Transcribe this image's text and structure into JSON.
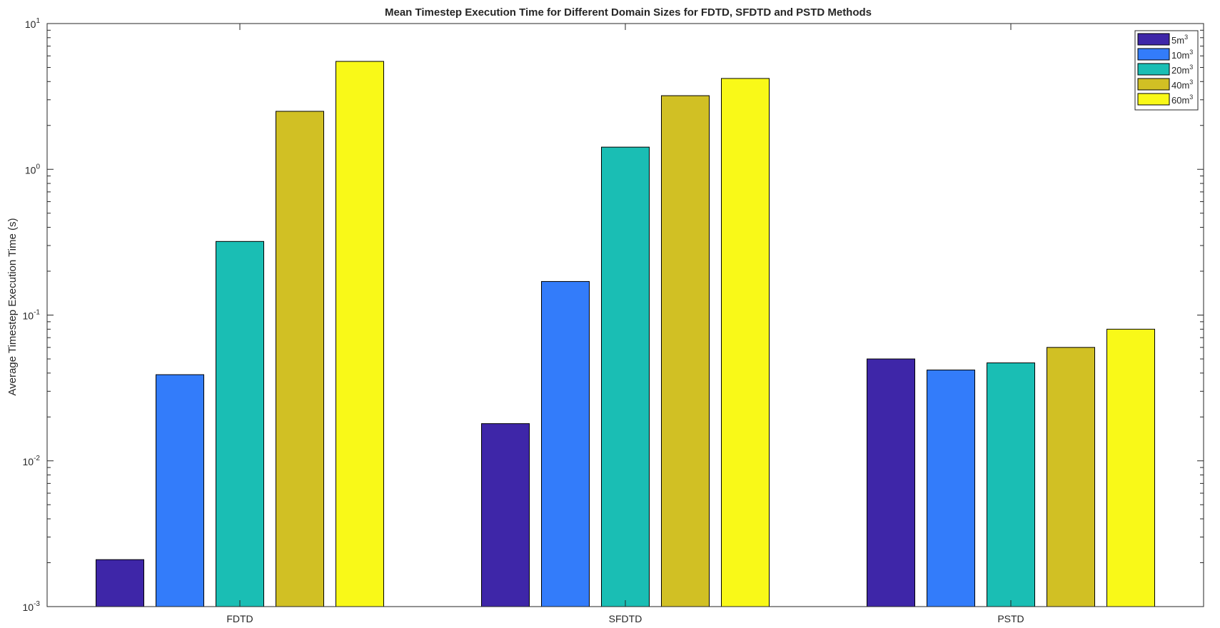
{
  "chart_data": {
    "type": "bar",
    "title": "Mean Timestep Execution Time for Different Domain Sizes for FDTD, SFDTD and PSTD Methods",
    "xlabel": "",
    "ylabel": "Average Timestep Execution Time (s)",
    "categories": [
      "FDTD",
      "SFDTD",
      "PSTD"
    ],
    "yscale": "log",
    "ylim": [
      0.001,
      10
    ],
    "yticks": [
      {
        "base": "10",
        "exp": "-3",
        "value": 0.001
      },
      {
        "base": "10",
        "exp": "-2",
        "value": 0.01
      },
      {
        "base": "10",
        "exp": "-1",
        "value": 0.1
      },
      {
        "base": "10",
        "exp": "0",
        "value": 1
      },
      {
        "base": "10",
        "exp": "1",
        "value": 10
      }
    ],
    "grid": false,
    "legend_position": "top-right",
    "series": [
      {
        "name": "5m",
        "sup": "3",
        "color": "#3e26a8",
        "values": [
          0.0021,
          0.018,
          0.05
        ]
      },
      {
        "name": "10m",
        "sup": "3",
        "color": "#337cfa",
        "values": [
          0.039,
          0.17,
          0.042
        ]
      },
      {
        "name": "20m",
        "sup": "3",
        "color": "#1abeb4",
        "values": [
          0.32,
          1.42,
          0.047
        ]
      },
      {
        "name": "40m",
        "sup": "3",
        "color": "#d1c024",
        "values": [
          2.5,
          3.2,
          0.06
        ]
      },
      {
        "name": "60m",
        "sup": "3",
        "color": "#f9f918",
        "values": [
          5.5,
          4.2,
          0.08
        ]
      }
    ]
  }
}
